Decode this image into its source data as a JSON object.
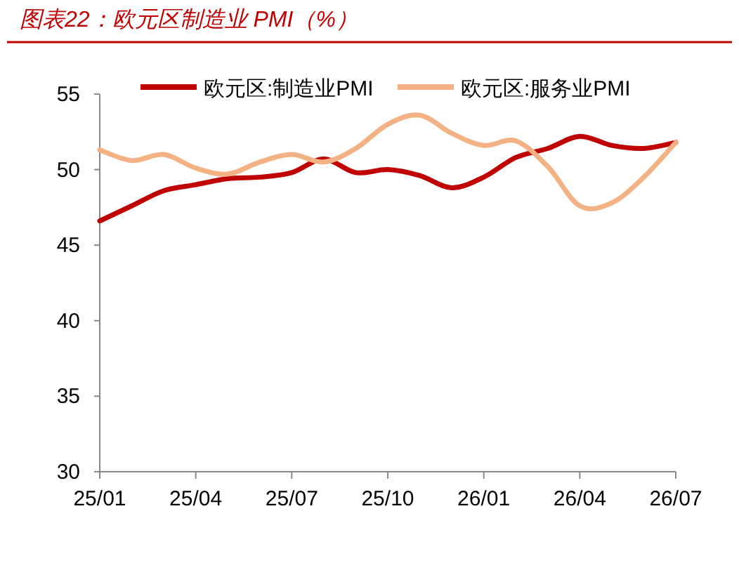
{
  "chart_data": {
    "type": "line",
    "title": "图表22：欧元区制造业 PMI（%）",
    "categories": [
      "25/01",
      null,
      null,
      "25/04",
      null,
      null,
      "25/07",
      null,
      null,
      "25/10",
      null,
      null,
      "26/01",
      null,
      null,
      "26/04",
      null,
      null,
      "26/07"
    ],
    "series": [
      {
        "name": "欧元区:制造业PMI",
        "color": "#c00000",
        "values": [
          46.6,
          47.6,
          48.6,
          49.0,
          49.4,
          49.5,
          49.8,
          50.7,
          49.8,
          50.0,
          49.6,
          48.8,
          49.5,
          50.8,
          51.4,
          52.2,
          51.6,
          51.4,
          51.8
        ]
      },
      {
        "name": "欧元区:服务业PMI",
        "color": "#f4b183",
        "values": [
          51.3,
          50.6,
          51.0,
          50.1,
          49.7,
          50.5,
          51.0,
          50.5,
          51.4,
          53.0,
          53.6,
          52.4,
          51.6,
          51.9,
          50.2,
          47.6,
          47.8,
          49.5,
          51.8
        ]
      }
    ],
    "ylim": [
      30,
      55
    ],
    "yticks": [
      30,
      35,
      40,
      45,
      50,
      55
    ],
    "grid": false,
    "legend": "top",
    "marker": "none",
    "line_style": "solid"
  }
}
